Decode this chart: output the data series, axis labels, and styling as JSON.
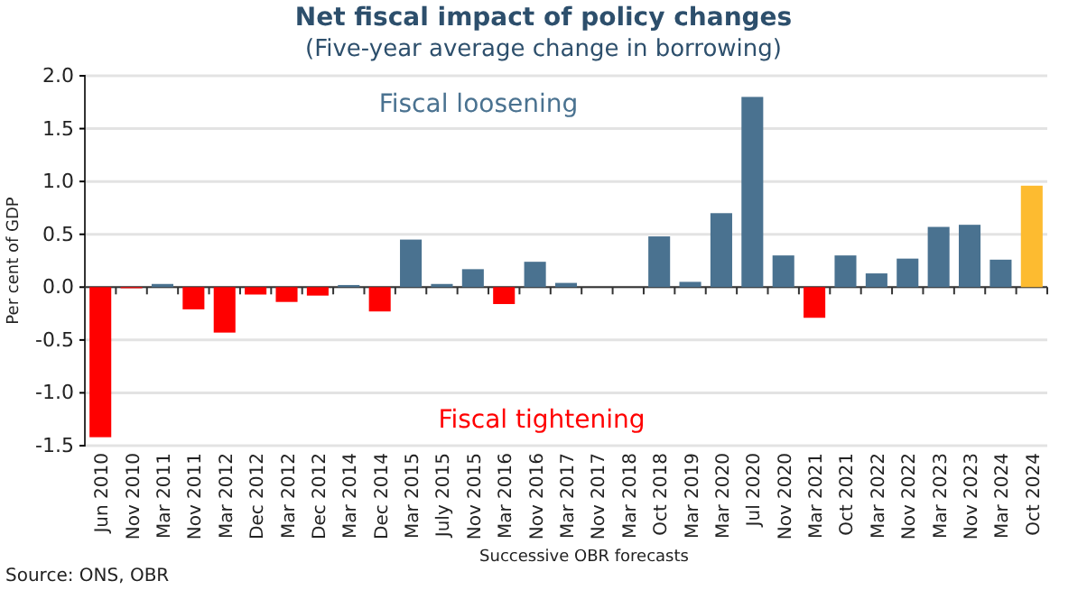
{
  "chart_data": {
    "type": "bar",
    "title": "Net fiscal impact of policy changes",
    "subtitle": "(Five-year average change in borrowing)",
    "ylabel": "Per cent of GDP",
    "xlabel": "Successive OBR forecasts",
    "categories": [
      "Jun 2010",
      "Nov 2010",
      "Mar 2011",
      "Nov 2011",
      "Mar 2012",
      "Dec 2012",
      "Mar 2012",
      "Dec 2012",
      "Mar 2014",
      "Dec 2014",
      "Mar 2015",
      "July 2015",
      "Nov 2015",
      "Mar 2016",
      "Nov 2016",
      "Mar 2017",
      "Nov 2017",
      "Mar 2018",
      "Oct 2018",
      "Mar 2019",
      "Mar 2020",
      "Jul 2020",
      "Nov 2020",
      "Mar 2021",
      "Oct 2021",
      "Mar 2022",
      "Nov 2022",
      "Mar 2023",
      "Nov 2023",
      "Mar 2024",
      "Oct 2024"
    ],
    "values": [
      -1.42,
      -0.01,
      0.03,
      -0.21,
      -0.43,
      -0.07,
      -0.14,
      -0.08,
      0.02,
      -0.23,
      0.45,
      0.03,
      0.17,
      -0.16,
      0.24,
      0.04,
      0,
      0,
      0.48,
      0.05,
      0.7,
      1.8,
      0.3,
      -0.29,
      0.3,
      0.13,
      0.27,
      0.57,
      0.59,
      0.26,
      0.96
    ],
    "colors": [
      "#ff0000",
      "#ff0000",
      "#4a7290",
      "#ff0000",
      "#ff0000",
      "#ff0000",
      "#ff0000",
      "#ff0000",
      "#4a7290",
      "#ff0000",
      "#4a7290",
      "#4a7290",
      "#4a7290",
      "#ff0000",
      "#4a7290",
      "#4a7290",
      "#4a7290",
      "#4a7290",
      "#4a7290",
      "#4a7290",
      "#4a7290",
      "#4a7290",
      "#4a7290",
      "#ff0000",
      "#4a7290",
      "#4a7290",
      "#4a7290",
      "#4a7290",
      "#4a7290",
      "#4a7290",
      "#fdbb30"
    ],
    "ylim": [
      -1.5,
      2.0
    ],
    "yticks": [
      {
        "value": -1.5,
        "label": "-1.5"
      },
      {
        "value": -1,
        "label": "-1.0"
      },
      {
        "value": -0.5,
        "label": "-0.5"
      },
      {
        "value": 0,
        "label": "0.0"
      },
      {
        "value": 0.5,
        "label": "0.5"
      },
      {
        "value": 1,
        "label": "1.0"
      },
      {
        "value": 1.5,
        "label": "1.5"
      },
      {
        "value": 2,
        "label": "2.0"
      }
    ],
    "grid": "y",
    "annotations": [
      "Fiscal loosening",
      "Fiscal tightening",
      "Source: ONS, OBR"
    ]
  }
}
